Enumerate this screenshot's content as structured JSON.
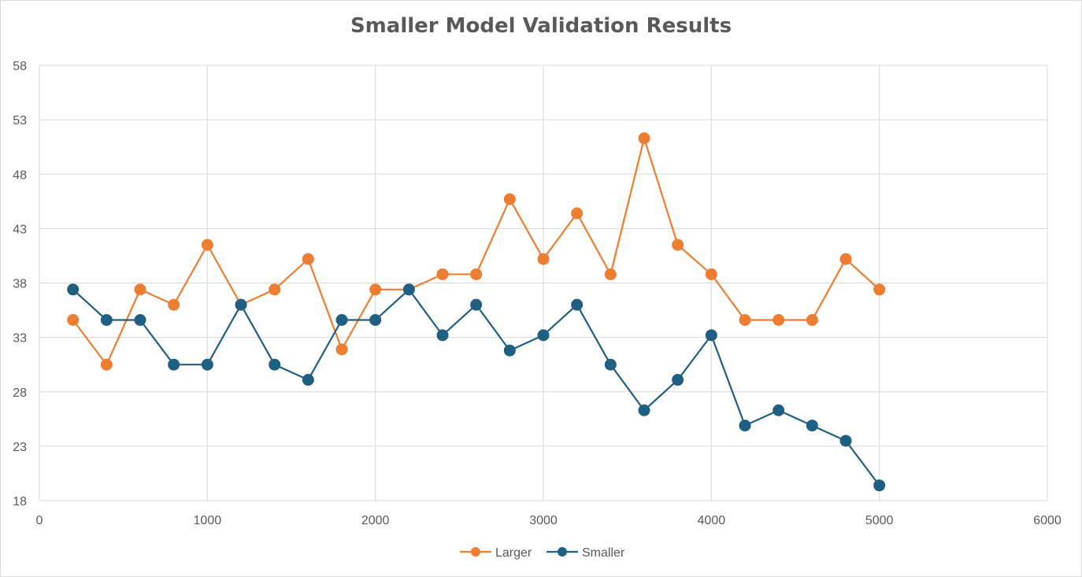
{
  "chart_data": {
    "type": "scatter",
    "title": "Smaller Model Validation Results",
    "xlim": [
      0,
      6000
    ],
    "ylim": [
      18,
      58
    ],
    "x_ticks": [
      0,
      1000,
      2000,
      3000,
      4000,
      5000,
      6000
    ],
    "y_ticks": [
      18,
      23,
      28,
      33,
      38,
      43,
      48,
      53,
      58
    ],
    "grid": true,
    "legend_position": "bottom",
    "x": [
      200,
      400,
      600,
      800,
      1000,
      1200,
      1400,
      1600,
      1800,
      2000,
      2200,
      2400,
      2600,
      2800,
      3000,
      3200,
      3400,
      3600,
      3800,
      4000,
      4200,
      4400,
      4600,
      4800,
      5000
    ],
    "series": [
      {
        "name": "Larger",
        "color": "#ED7D31",
        "values": [
          34.6,
          30.5,
          37.4,
          36.0,
          41.5,
          36.0,
          37.4,
          40.2,
          31.9,
          37.4,
          37.4,
          38.8,
          38.8,
          45.7,
          40.2,
          44.4,
          38.8,
          51.3,
          41.5,
          38.8,
          34.6,
          34.6,
          34.6,
          40.2,
          37.4
        ]
      },
      {
        "name": "Smaller",
        "color": "#1F5F82",
        "values": [
          37.4,
          34.6,
          34.6,
          30.5,
          30.5,
          36.0,
          30.5,
          29.1,
          34.6,
          34.6,
          37.4,
          33.2,
          36.0,
          31.8,
          33.2,
          36.0,
          30.5,
          26.3,
          29.1,
          33.2,
          24.9,
          26.3,
          24.9,
          23.5,
          19.4
        ]
      }
    ]
  }
}
